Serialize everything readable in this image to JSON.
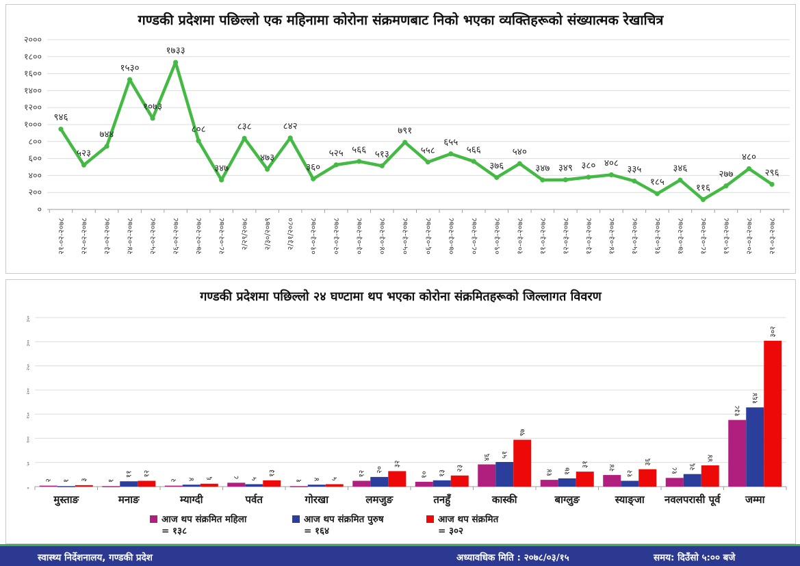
{
  "chart_data": [
    {
      "type": "line",
      "title": "गण्डकी प्रदेशमा पछिल्लो एक महिनामा कोरोना संक्रमणबाट निको भएका व्यक्तिहरूको संख्यात्मक रेखाचित्र",
      "x": [
        "२१-०२-२०७८",
        "२२-०२-२०७८",
        "२३-०२-२०७८",
        "२४-०२-२०७८",
        "२५-०२-२०७८",
        "२६-०२-२०७८",
        "२७-०२-२०७८",
        "२८-०२-२०७८",
        "२/२९/२०७८",
        "२/३०/२०७९",
        "२/३१/२०८०",
        "०१-०३-२०७८",
        "०२-०३-२०७८",
        "०३-०३-२०७८",
        "०४-०३-२०७८",
        "०५-०३-२०७८",
        "०६-०३-२०७८",
        "०७-०३-२०७८",
        "०८-०३-२०७८",
        "०९-०३-२०७८",
        "१०-०३-२०७८",
        "११-०३-२०७८",
        "१२-०३-२०७८",
        "१३-०३-२०७८",
        "१४-०३-२०७८",
        "१५-०३-२०७८",
        "१६-०३-२०७८",
        "१७-०३-२०७८",
        "१८-०३-२०७८",
        "१९-०३-२०७८",
        "२०-०३-२०७८",
        "२१-०३-२०७८"
      ],
      "values": [
        946,
        523,
        744,
        1530,
        1073,
        1733,
        808,
        347,
        838,
        473,
        842,
        360,
        525,
        566,
        513,
        791,
        558,
        655,
        566,
        376,
        540,
        347,
        349,
        380,
        408,
        335,
        185,
        346,
        116,
        277,
        480,
        296
      ],
      "value_labels": [
        "९४६",
        "५२३",
        "७४४",
        "१५३०",
        "१०७३",
        "१७३३",
        "८०८",
        "३४७",
        "८३८",
        "४७३",
        "८४२",
        "३६०",
        "५२५",
        "५६६",
        "५१३",
        "७९१",
        "५५८",
        "६५५",
        "५६६",
        "३७६",
        "५४०",
        "३४७",
        "३४९",
        "३८०",
        "४०८",
        "३३५",
        "१८५",
        "३४६",
        "११६",
        "२७७",
        "४८०",
        "२९६"
      ],
      "y_tick_labels": [
        "०",
        "२००",
        "४००",
        "६००",
        "८००",
        "१०००",
        "१२००",
        "१४००",
        "१६००",
        "१८००",
        "२०००"
      ],
      "ylim": [
        0,
        2000
      ],
      "line_color": "#44ba44",
      "grid": true
    },
    {
      "type": "bar",
      "title": "गण्डकी प्रदेशमा पछिल्लो २४ घण्टामा थप भएका कोरोना संक्रमितहरूको जिल्लागत विवरण",
      "categories": [
        "मुस्ताङ",
        "मनाङ",
        "म्याग्दी",
        "पर्वत",
        "गोरखा",
        "लमजुङ",
        "तनहुँ",
        "कास्की",
        "बाग्लुङ",
        "स्याङ्जा",
        "नवलपरासी पूर्व",
        "जम्मा"
      ],
      "series": [
        {
          "name": "आज थप संक्रमित महिला",
          "legend_value": "= १३८",
          "color": "#b01f7d",
          "values": [
            2,
            1,
            2,
            8,
            1,
            12,
            10,
            46,
            14,
            24,
            18,
            138
          ],
          "value_labels": [
            "२",
            "१",
            "२",
            "८",
            "१",
            "१२",
            "१०",
            "४६",
            "१४",
            "२४",
            "१८",
            "१३८"
          ]
        },
        {
          "name": "आज थप संक्रमित पुरुष",
          "legend_value": "= १६४",
          "color": "#2c3e9c",
          "values": [
            1,
            11,
            4,
            5,
            4,
            20,
            13,
            51,
            17,
            12,
            26,
            164
          ],
          "value_labels": [
            "१",
            "११",
            "४",
            "५",
            "४",
            "२०",
            "१३",
            "५१",
            "१७",
            "१२",
            "२६",
            "१६४"
          ]
        },
        {
          "name": "आज थप संक्रमित",
          "legend_value": "= ३०२",
          "color": "#ee0909",
          "values": [
            3,
            12,
            6,
            13,
            5,
            32,
            23,
            97,
            31,
            36,
            44,
            302
          ],
          "value_labels": [
            "३",
            "१२",
            "६",
            "१३",
            "५",
            "३२",
            "२३",
            "९७",
            "३१",
            "३६",
            "४४",
            "३०२"
          ]
        }
      ],
      "y_tick_labels": [
        "०",
        "५०",
        "१००",
        "१५०",
        "२००",
        "२५०",
        "३००",
        "३५०"
      ],
      "ylim": [
        0,
        350
      ],
      "legend_position": "bottom",
      "grid": true
    }
  ],
  "footer": {
    "left": "स्वास्थ्य निर्देशनालय, गण्डकी प्रदेश",
    "center": "अध्यावधिक मिति : २०७८/०३/१५",
    "right": "समय: दिउँसो ५:०० बजे"
  },
  "colors": {
    "line_green": "#44ba44",
    "bar_female_magenta": "#b01f7d",
    "bar_male_blue": "#2c3e9c",
    "bar_total_red": "#ee0909",
    "footer_navy": "#2b3991",
    "footer_divider_green": "#3fae49"
  }
}
